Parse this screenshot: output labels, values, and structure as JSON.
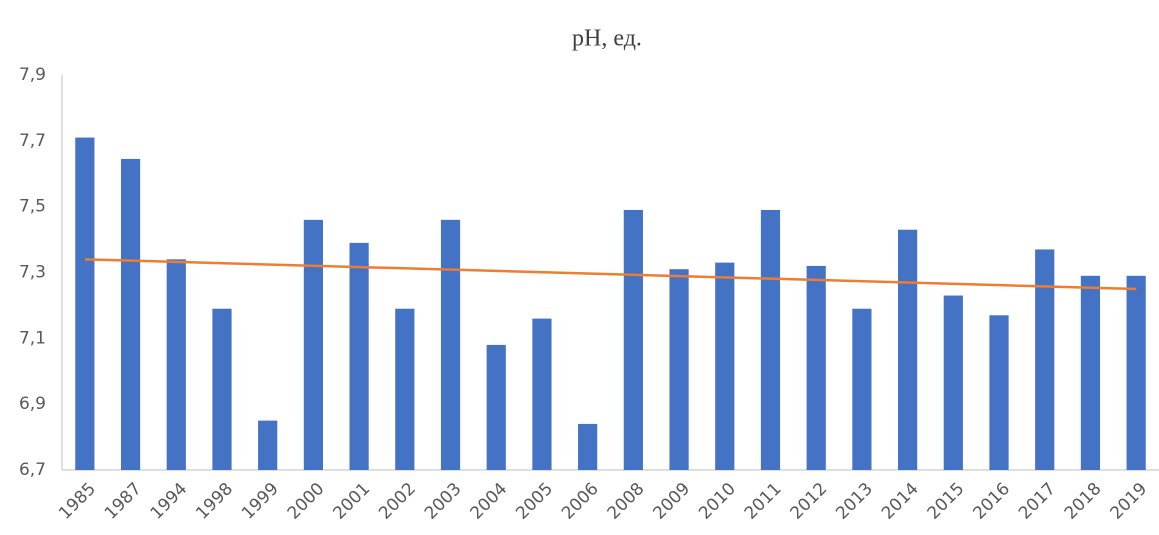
{
  "chart_data": {
    "type": "bar",
    "title": "pH, ед.",
    "categories": [
      "1985",
      "1987",
      "1994",
      "1998",
      "1999",
      "2000",
      "2001",
      "2002",
      "2003",
      "2004",
      "2005",
      "2006",
      "2008",
      "2009",
      "2010",
      "2011",
      "2012",
      "2013",
      "2014",
      "2015",
      "2016",
      "2017",
      "2018",
      "2019"
    ],
    "values": [
      7.71,
      7.645,
      7.34,
      7.19,
      6.85,
      7.46,
      7.39,
      7.19,
      7.46,
      7.08,
      7.16,
      6.84,
      7.49,
      7.31,
      7.33,
      7.49,
      7.32,
      7.19,
      7.43,
      7.23,
      7.17,
      7.37,
      7.29,
      7.29
    ],
    "color": "#4472c4",
    "trendline": {
      "color": "#ed7d31",
      "values": [
        7.34,
        7.25
      ]
    },
    "ylim": [
      6.7,
      7.9
    ],
    "yticks": [
      {
        "value": 6.7,
        "label": "6,7"
      },
      {
        "value": 6.9,
        "label": "6,9"
      },
      {
        "value": 7.1,
        "label": "7,1"
      },
      {
        "value": 7.3,
        "label": "7,3"
      },
      {
        "value": 7.5,
        "label": "7,5"
      },
      {
        "value": 7.7,
        "label": "7,7"
      },
      {
        "value": 7.9,
        "label": "7,9"
      }
    ],
    "grid": false
  }
}
